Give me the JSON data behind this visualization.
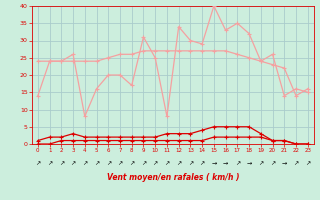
{
  "x": [
    0,
    1,
    2,
    3,
    4,
    5,
    6,
    7,
    8,
    9,
    10,
    11,
    12,
    13,
    14,
    15,
    16,
    17,
    18,
    19,
    20,
    21,
    22,
    23
  ],
  "rafales": [
    14,
    24,
    24,
    26,
    8,
    16,
    20,
    20,
    17,
    31,
    25,
    8,
    34,
    30,
    29,
    40,
    33,
    35,
    32,
    24,
    26,
    14,
    16,
    15
  ],
  "vent_smooth": [
    24,
    24,
    24,
    24,
    24,
    24,
    25,
    26,
    26,
    27,
    27,
    27,
    27,
    27,
    27,
    27,
    27,
    26,
    25,
    24,
    23,
    22,
    14,
    16
  ],
  "vent_moyen": [
    1,
    2,
    2,
    3,
    2,
    2,
    2,
    2,
    2,
    2,
    2,
    3,
    3,
    3,
    4,
    5,
    5,
    5,
    5,
    3,
    1,
    1,
    0,
    0
  ],
  "vent_low": [
    0,
    0,
    1,
    1,
    1,
    1,
    1,
    1,
    1,
    1,
    1,
    1,
    1,
    1,
    1,
    2,
    2,
    2,
    2,
    2,
    1,
    1,
    0,
    0
  ],
  "color_light": "#f5a0a0",
  "color_dark": "#dd0000",
  "bg_color": "#cceedd",
  "grid_color": "#aacccc",
  "xlabel": "Vent moyen/en rafales ( km/h )",
  "ylim": [
    0,
    40
  ],
  "xlim": [
    -0.5,
    23.5
  ],
  "arrows": [
    "↗",
    "↗",
    "↗",
    "↗",
    "↗",
    "↗",
    "↗",
    "↗",
    "↗",
    "↗",
    "↗",
    "↗",
    "↗",
    "↗",
    "↗",
    "→",
    "→",
    "↗",
    "→",
    "↗",
    "↗",
    "→",
    "↗",
    "↗"
  ]
}
